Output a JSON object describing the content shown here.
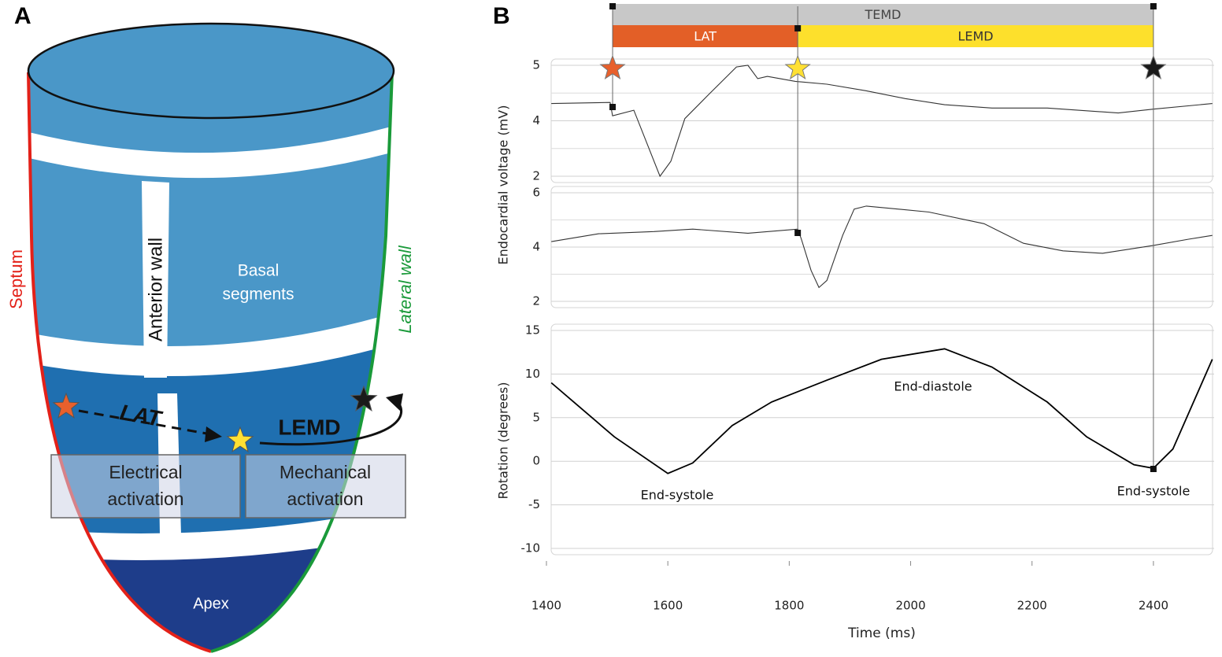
{
  "panel_a": {
    "letter": "A",
    "septum": "Septum",
    "lateral_wall": "Lateral wall",
    "anterior_wall": "Anterior wall",
    "basal_segments": [
      "Basal",
      "segments"
    ],
    "lat": "LAT",
    "lemd": "LEMD",
    "electrical_activation": [
      "Electrical",
      "activation"
    ],
    "mechanical_activation": [
      "Mechanical",
      "activation"
    ],
    "apex": "Apex"
  },
  "panel_b": {
    "letter": "B",
    "intervals": [
      {
        "label": "TEMD",
        "start": 1509,
        "end": 2400,
        "color": "#c8c8c8"
      },
      {
        "label": "LAT",
        "start": 1509,
        "end": 1814,
        "color": "#e35f27"
      },
      {
        "label": "LEMD",
        "start": 1814,
        "end": 2400,
        "color": "#fde02c"
      }
    ],
    "markers": [
      {
        "time": 1509,
        "color": "#e8602c"
      },
      {
        "time": 1814,
        "color": "#ffe033"
      },
      {
        "time": 2400,
        "color": "#1a1a1a"
      }
    ]
  },
  "chart_data": [
    {
      "type": "line",
      "ylabel": "Endocardial voltage (mV)",
      "xlim": [
        1400,
        2500
      ],
      "ylim": [
        2,
        5
      ],
      "yticks": [
        5,
        4,
        2
      ],
      "minor_grid": true,
      "color": "#333333",
      "x": [
        1408,
        1505,
        1509,
        1544,
        1587,
        1605,
        1628,
        1667,
        1713,
        1732,
        1748,
        1764,
        1810,
        1862,
        1927,
        1991,
        2056,
        2134,
        2225,
        2342,
        2400,
        2497
      ],
      "values": [
        4.31,
        4.33,
        4.09,
        4.19,
        2.0,
        2.54,
        4.04,
        4.47,
        4.97,
        5.0,
        4.76,
        4.8,
        4.71,
        4.66,
        4.54,
        4.4,
        4.29,
        4.23,
        4.23,
        4.14,
        4.21,
        4.31
      ]
    },
    {
      "type": "line",
      "xlim": [
        1400,
        2500
      ],
      "ylim": [
        2,
        6
      ],
      "yticks": [
        6,
        4,
        2
      ],
      "minor_grid": true,
      "color": "#333333",
      "x": [
        1408,
        1486,
        1577,
        1641,
        1732,
        1814,
        1820,
        1836,
        1849,
        1862,
        1888,
        1907,
        1927,
        2030,
        2121,
        2186,
        2251,
        2316,
        2400,
        2458,
        2497
      ],
      "values": [
        4.2,
        4.49,
        4.57,
        4.66,
        4.51,
        4.66,
        4.29,
        3.14,
        2.51,
        2.77,
        4.43,
        5.4,
        5.51,
        5.29,
        4.86,
        4.14,
        3.86,
        3.77,
        4.06,
        4.29,
        4.43
      ]
    },
    {
      "type": "line",
      "ylabel": "Rotation (degrees)",
      "xlabel": "Time (ms)",
      "xlim": [
        1400,
        2500
      ],
      "ylim": [
        -10,
        15
      ],
      "yticks": [
        15,
        10,
        5,
        0,
        -5,
        -10
      ],
      "xticks": [
        1400,
        1600,
        1800,
        2000,
        2200,
        2400
      ],
      "minor_grid": false,
      "color": "#000000",
      "x": [
        1408,
        1512,
        1600,
        1641,
        1706,
        1771,
        1862,
        1952,
        2056,
        2134,
        2225,
        2290,
        2368,
        2400,
        2432,
        2497
      ],
      "values": [
        9.0,
        2.8,
        -1.4,
        -0.2,
        4.1,
        6.8,
        9.3,
        11.7,
        12.9,
        10.8,
        6.8,
        2.8,
        -0.4,
        -0.8,
        1.4,
        11.7
      ],
      "annotations": [
        "End-systole",
        "End-diastole",
        "End-systole"
      ]
    }
  ]
}
